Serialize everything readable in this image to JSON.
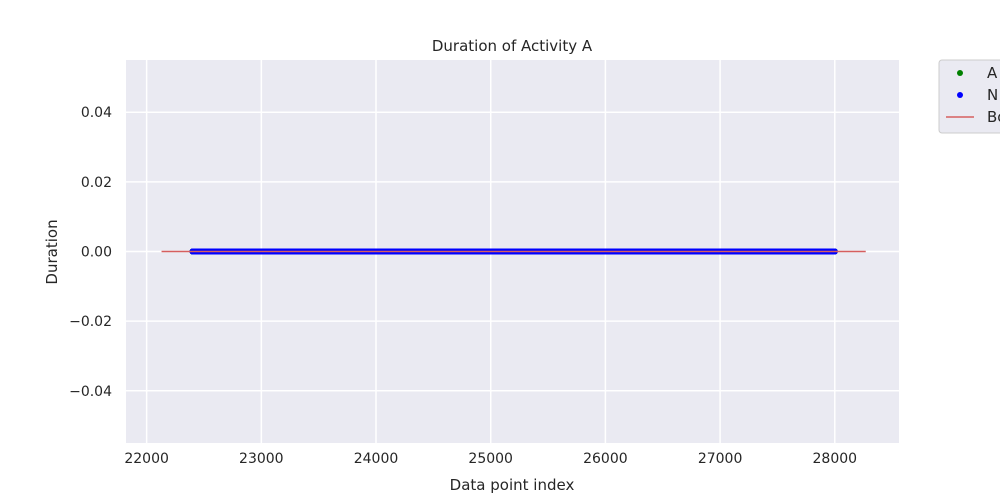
{
  "chart_data": {
    "type": "scatter",
    "title": "Duration of Activity A",
    "xlabel": "Data point index",
    "ylabel": "Duration",
    "xlim": [
      21820,
      28560
    ],
    "ylim": [
      -0.055,
      0.055
    ],
    "xticks": [
      22000,
      23000,
      24000,
      25000,
      26000,
      27000,
      28000
    ],
    "xtick_labels": [
      "22000",
      "23000",
      "24000",
      "25000",
      "26000",
      "27000",
      "28000"
    ],
    "yticks": [
      0.04,
      0.02,
      0.0,
      -0.02,
      -0.04
    ],
    "ytick_labels": [
      "0.04",
      "0.02",
      "0.00",
      "−0.02",
      "−0.04"
    ],
    "grid": true,
    "background": "#eaeaf2",
    "series": [
      {
        "name": "A",
        "kind": "points",
        "color": "#008000",
        "x_start": 22400,
        "x_end": 28000,
        "y": 0.0
      },
      {
        "name": "N",
        "kind": "points",
        "color": "#0000ff",
        "x_start": 22400,
        "x_end": 28000,
        "y": 0.0
      },
      {
        "name": "Bo",
        "kind": "line",
        "color": "#d65f5f",
        "x": [
          22130,
          28270
        ],
        "y": [
          0.0,
          0.0
        ]
      }
    ],
    "legend": {
      "placement": "outside-top-right",
      "entries": [
        "A",
        "N",
        "Bo"
      ]
    }
  }
}
